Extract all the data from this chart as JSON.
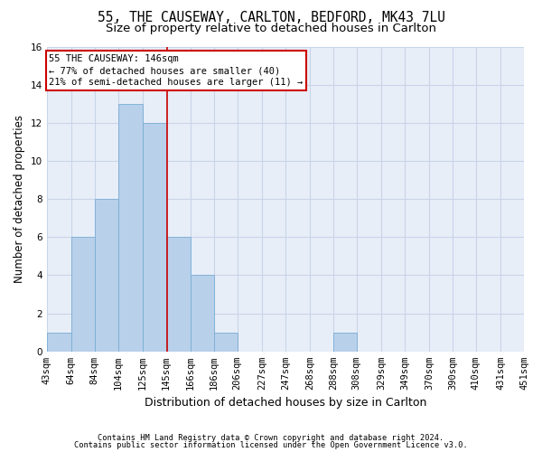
{
  "title_line1": "55, THE CAUSEWAY, CARLTON, BEDFORD, MK43 7LU",
  "title_line2": "Size of property relative to detached houses in Carlton",
  "xlabel": "Distribution of detached houses by size in Carlton",
  "ylabel": "Number of detached properties",
  "footnote1": "Contains HM Land Registry data © Crown copyright and database right 2024.",
  "footnote2": "Contains public sector information licensed under the Open Government Licence v3.0.",
  "bin_labels": [
    "43sqm",
    "64sqm",
    "84sqm",
    "104sqm",
    "125sqm",
    "145sqm",
    "166sqm",
    "186sqm",
    "206sqm",
    "227sqm",
    "247sqm",
    "268sqm",
    "288sqm",
    "308sqm",
    "329sqm",
    "349sqm",
    "370sqm",
    "390sqm",
    "410sqm",
    "431sqm",
    "451sqm"
  ],
  "bin_edges": [
    43,
    64,
    84,
    104,
    125,
    145,
    166,
    186,
    206,
    227,
    247,
    268,
    288,
    308,
    329,
    349,
    370,
    390,
    410,
    431,
    451
  ],
  "bar_heights": [
    1,
    6,
    8,
    13,
    12,
    6,
    4,
    1,
    0,
    0,
    0,
    0,
    1,
    0,
    0,
    0,
    0,
    0,
    0,
    0
  ],
  "bar_color": "#b8d0ea",
  "bar_edge_color": "#7aadd4",
  "property_size": 146,
  "red_line_color": "#cc0000",
  "annotation_line1": "55 THE CAUSEWAY: 146sqm",
  "annotation_line2": "← 77% of detached houses are smaller (40)",
  "annotation_line3": "21% of semi-detached houses are larger (11) →",
  "annotation_box_color": "#cc0000",
  "ylim": [
    0,
    16
  ],
  "yticks": [
    0,
    2,
    4,
    6,
    8,
    10,
    12,
    14,
    16
  ],
  "grid_color": "#c8d4e8",
  "background_color": "#e8eef8",
  "title_fontsize": 10.5,
  "subtitle_fontsize": 9.5,
  "axis_label_fontsize": 8.5,
  "tick_fontsize": 7.5,
  "annot_fontsize": 7.5
}
